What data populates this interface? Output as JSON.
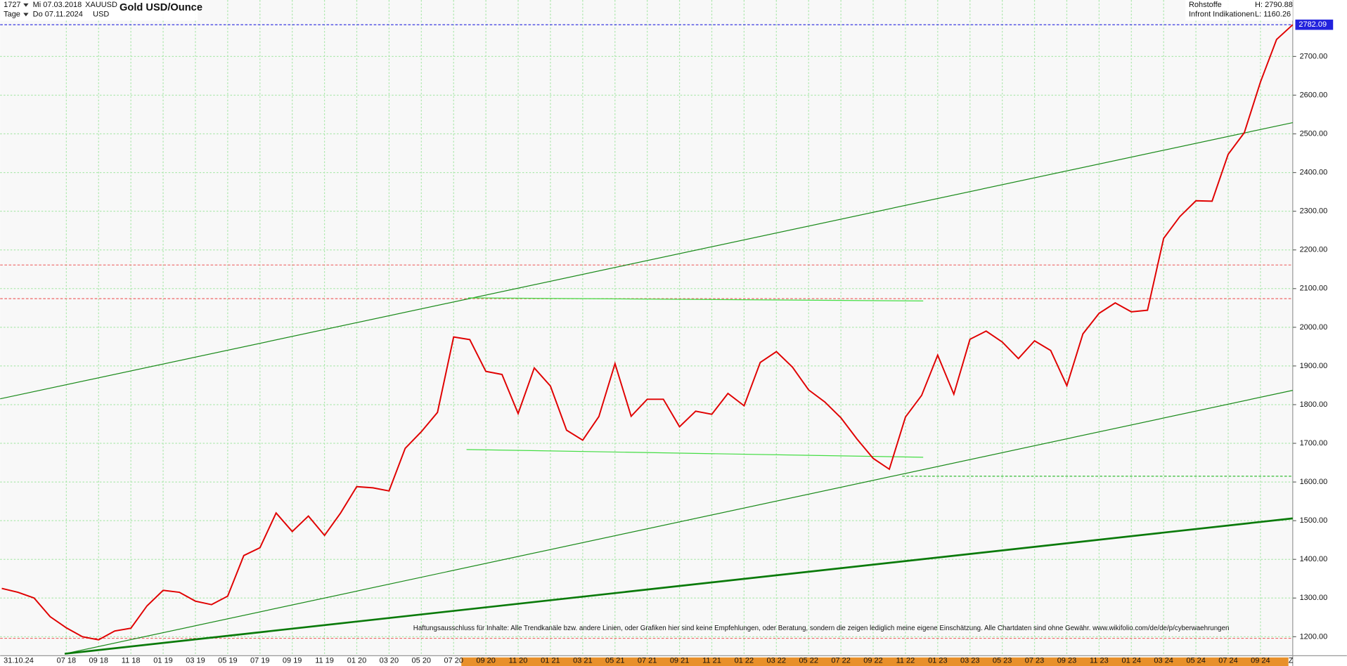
{
  "header": {
    "id": "1727",
    "from": "Mi 07.03.2018",
    "symbol": "XAUUSD",
    "period": "Tage",
    "to": "Do 07.11.2024",
    "currency": "USD",
    "source_group": "Rohstoffe",
    "high": "H: 2790.88",
    "source": "Infront Indikationen",
    "low": "L: 1160.26"
  },
  "chart_data": {
    "type": "line",
    "title": "Gold USD/Ounce",
    "color": "#e00000",
    "x_start_label": "31.10.24",
    "x_end_label": "Z",
    "categories": [
      null,
      null,
      null,
      null,
      "07 18",
      null,
      "09 18",
      null,
      "11 18",
      null,
      "01 19",
      null,
      "03 19",
      null,
      "05 19",
      null,
      "07 19",
      null,
      "09 19",
      null,
      "11 19",
      null,
      "01 20",
      null,
      "03 20",
      null,
      "05 20",
      null,
      "07 20",
      null,
      "09 20",
      null,
      "11 20",
      null,
      "01 21",
      null,
      "03 21",
      null,
      "05 21",
      null,
      "07 21",
      null,
      "09 21",
      null,
      "11 21",
      null,
      "01 22",
      null,
      "03 22",
      null,
      "05 22",
      null,
      "07 22",
      null,
      "09 22",
      null,
      "11 22",
      null,
      "01 23",
      null,
      "03 23",
      null,
      "05 23",
      null,
      "07 23",
      null,
      "09 23",
      null,
      "11 23",
      null,
      "01 24",
      null,
      "03 24",
      null,
      "05 24",
      null,
      "07 24",
      null,
      "09 24",
      null,
      null
    ],
    "values": [
      1325,
      1315,
      1300,
      1252,
      1223,
      1200,
      1192,
      1215,
      1222,
      1280,
      1320,
      1315,
      1292,
      1283,
      1305,
      1410,
      1430,
      1520,
      1472,
      1512,
      1462,
      1520,
      1588,
      1585,
      1577,
      1687,
      1730,
      1780,
      1975,
      1968,
      1886,
      1878,
      1777,
      1895,
      1848,
      1734,
      1708,
      1769,
      1906,
      1770,
      1814,
      1814,
      1743,
      1783,
      1775,
      1829,
      1797,
      1909,
      1937,
      1897,
      1838,
      1807,
      1766,
      1711,
      1661,
      1633,
      1768,
      1824,
      1928,
      1827,
      1969,
      1990,
      1962,
      1919,
      1965,
      1940,
      1849,
      1983,
      2036,
      2063,
      2040,
      2044,
      2230,
      2286,
      2327,
      2326,
      2447,
      2503,
      2634,
      2744,
      2782
    ],
    "last_price": 2782.09,
    "xlim": [
      -0.1,
      80
    ],
    "ylim": [
      1151,
      2846
    ],
    "yticks": [
      {
        "value": 1200,
        "label": "1200.00"
      },
      {
        "value": 1300,
        "label": "1300.00"
      },
      {
        "value": 1400,
        "label": "1400.00"
      },
      {
        "value": 1500,
        "label": "1500.00"
      },
      {
        "value": 1600,
        "label": "1600.00"
      },
      {
        "value": 1700,
        "label": "1700.00"
      },
      {
        "value": 1800,
        "label": "1800.00"
      },
      {
        "value": 1900,
        "label": "1900.00"
      },
      {
        "value": 2000,
        "label": "2000.00"
      },
      {
        "value": 2100,
        "label": "2100.00"
      },
      {
        "value": 2200,
        "label": "2200.00"
      },
      {
        "value": 2300,
        "label": "2300.00"
      },
      {
        "value": 2400,
        "label": "2400.00"
      },
      {
        "value": 2500,
        "label": "2500.00"
      },
      {
        "value": 2600,
        "label": "2600.00"
      },
      {
        "value": 2700,
        "label": "2700.00"
      }
    ],
    "grid": true,
    "trendlines": [
      {
        "x": [
          -0.1,
          80
        ],
        "y": [
          1815,
          2529
        ],
        "color": "#1a8a1a",
        "width": 1
      },
      {
        "x": [
          3.9,
          80
        ],
        "y": [
          1156,
          1837
        ],
        "color": "#1a8a1a",
        "width": 1
      },
      {
        "x": [
          3.9,
          80
        ],
        "y": [
          1156,
          1506
        ],
        "color": "#0a7a0a",
        "width": 2.2
      },
      {
        "x": [
          28.9,
          57.1
        ],
        "y": [
          2076,
          2068
        ],
        "color": "#44dd44",
        "width": 1
      },
      {
        "x": [
          28.8,
          57.1
        ],
        "y": [
          1684,
          1664
        ],
        "color": "#44dd44",
        "width": 1
      }
    ],
    "hlines": [
      {
        "value": 2782.09,
        "color": "#2222dd"
      },
      {
        "value": 2161,
        "color": "#ee6666"
      },
      {
        "value": 2074,
        "color": "#ee6666"
      },
      {
        "value": 1196,
        "color": "#ee6666"
      },
      {
        "value": 1615,
        "color": "#33bb33",
        "from": 55.8
      }
    ],
    "disclaimer": "Haftungsausschluss für Inhalte: Alle Trendkanäle bzw. andere Linien, oder Grafiken hier sind keine Empfehlungen, oder Beratung, sondern die zeigen lediglich meine eigene Einschätzung. Alle Chartdaten sind ohne Gewähr.  www.wikifolio.com/de/de/p/cyberwaehrungen"
  }
}
